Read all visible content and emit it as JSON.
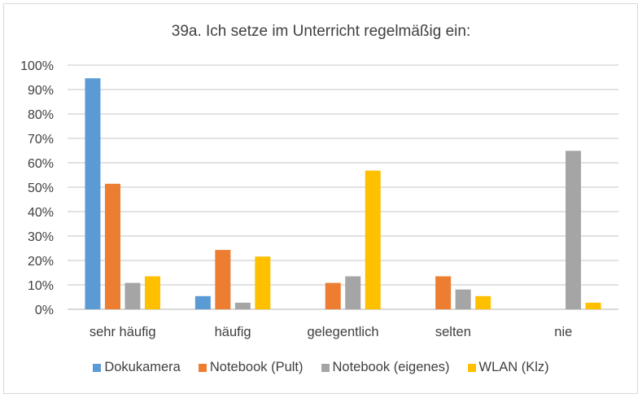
{
  "chart_data": {
    "type": "bar",
    "title": "39a. Ich setze im Unterricht regelmäßig ein:",
    "xlabel": "",
    "ylabel": "",
    "ylim": [
      0,
      100
    ],
    "yticks": [
      "0%",
      "10%",
      "20%",
      "30%",
      "40%",
      "50%",
      "60%",
      "70%",
      "80%",
      "90%",
      "100%"
    ],
    "categories": [
      "sehr häufig",
      "häufig",
      "gelegentlich",
      "selten",
      "nie"
    ],
    "series": [
      {
        "name": "Dokukamera",
        "color": "#5b9bd5",
        "values": [
          94.6,
          5.4,
          0,
          0,
          0
        ]
      },
      {
        "name": "Notebook (Pult)",
        "color": "#ed7d31",
        "values": [
          51.4,
          24.3,
          10.8,
          13.5,
          0
        ]
      },
      {
        "name": "Notebook (eigenes)",
        "color": "#a5a5a5",
        "values": [
          10.8,
          2.7,
          13.5,
          8.1,
          64.9
        ]
      },
      {
        "name": "WLAN (Klz)",
        "color": "#ffc000",
        "values": [
          13.5,
          21.6,
          56.8,
          5.4,
          2.7
        ]
      }
    ],
    "grid": true,
    "legend_position": "bottom"
  }
}
